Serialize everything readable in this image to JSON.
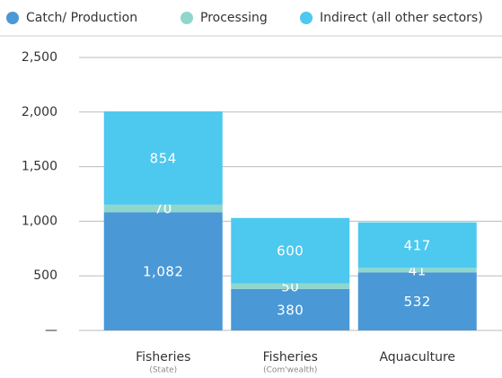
{
  "chart_data": {
    "type": "stacked-bar",
    "categories": [
      "Fisheries",
      "Fisheries",
      "Aquaculture"
    ],
    "category_subtitles": [
      "(State)",
      "(Com'wealth)",
      null
    ],
    "series": [
      {
        "name": "Catch/ Production",
        "color": "#4a98d6",
        "values": [
          1082,
          380,
          532
        ],
        "value_labels": [
          "1,082",
          "380",
          "532"
        ]
      },
      {
        "name": "Processing",
        "color": "#8fd6cc",
        "values": [
          70,
          50,
          41
        ]
      },
      {
        "name": "Indirect (all other sectors)",
        "color": "#4dc8ef",
        "values": [
          854,
          600,
          417
        ]
      }
    ],
    "ylim": [
      0,
      2500
    ],
    "yticks": [
      {
        "value": 0,
        "label": "—"
      },
      500,
      {
        "value": 1000,
        "label": "1,000"
      },
      {
        "value": 1500,
        "label": "1,500"
      },
      {
        "value": 2000,
        "label": "2,000"
      },
      {
        "value": 2500,
        "label": "2,500"
      }
    ],
    "grid": true,
    "legend": "top"
  }
}
